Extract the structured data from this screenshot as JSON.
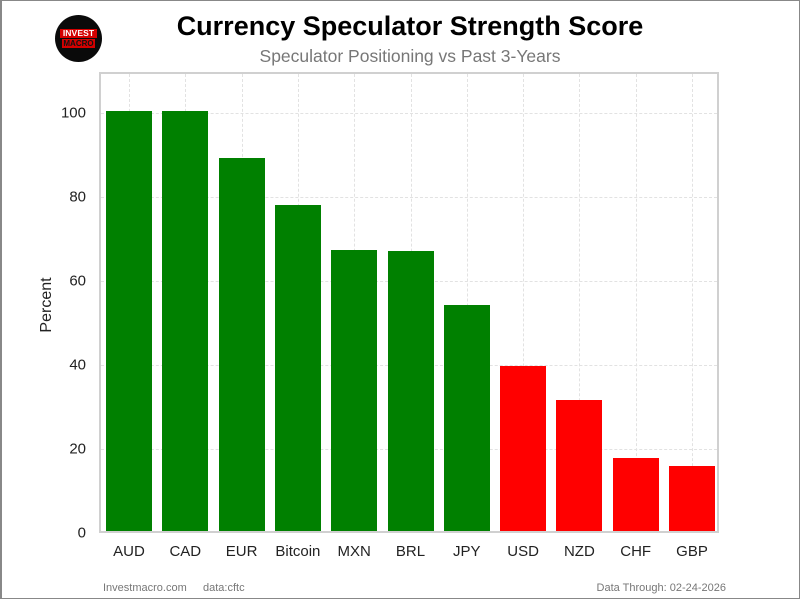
{
  "header": {
    "logo_line1": "INVEST",
    "logo_line2": "MACRO",
    "title": "Currency Speculator Strength Score",
    "subtitle": "Speculator Positioning vs Past 3-Years"
  },
  "footer": {
    "site": "Investmacro.com",
    "source": "data:cftc",
    "data_through": "Data Through: 02-24-2026"
  },
  "colors": {
    "positive": "#008000",
    "negative": "#ff0000"
  },
  "chart_data": {
    "type": "bar",
    "title": "Currency Speculator Strength Score",
    "subtitle": "Speculator Positioning vs Past 3-Years",
    "xlabel": "",
    "ylabel": "Percent",
    "ylim": [
      0,
      110
    ],
    "yticks": [
      0,
      20,
      40,
      60,
      80,
      100
    ],
    "grid": true,
    "legend": null,
    "categories": [
      "AUD",
      "CAD",
      "EUR",
      "Bitcoin",
      "MXN",
      "BRL",
      "JPY",
      "USD",
      "NZD",
      "CHF",
      "GBP"
    ],
    "values": [
      100,
      100,
      88.7,
      77.6,
      67.0,
      66.7,
      53.9,
      39.4,
      31.3,
      17.5,
      15.5
    ],
    "bar_colors": [
      "#008000",
      "#008000",
      "#008000",
      "#008000",
      "#008000",
      "#008000",
      "#008000",
      "#ff0000",
      "#ff0000",
      "#ff0000",
      "#ff0000"
    ],
    "color_rule": "green if value >= 50, red if value < 50"
  }
}
